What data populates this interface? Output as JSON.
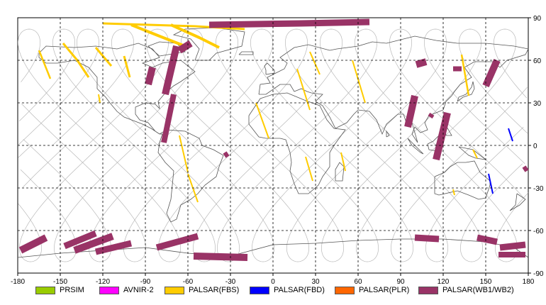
{
  "map": {
    "lon_ticks": [
      "-180",
      "-150",
      "-120",
      "-90",
      "-60",
      "-30",
      "0",
      "30",
      "60",
      "90",
      "120",
      "150",
      "180"
    ],
    "lat_ticks": [
      "90",
      "60",
      "30",
      "0",
      "-30",
      "-60",
      "-90"
    ],
    "lon_range": [
      -180,
      180
    ],
    "lat_range": [
      -90,
      90
    ],
    "grid": "dashed",
    "colors": {
      "background": "#ffffff",
      "coast": "#555555",
      "orbit": "#b8b8b8",
      "grid": "#000000"
    }
  },
  "legend": {
    "placement": "bottom",
    "items": [
      {
        "label": "PRSIM",
        "color": "#99cc00"
      },
      {
        "label": "AVNIR-2",
        "color": "#ff00ff"
      },
      {
        "label": "PALSAR(FBS)",
        "color": "#ffcc00"
      },
      {
        "label": "PALSAR(FBD)",
        "color": "#0000ff"
      },
      {
        "label": "PALSAR(PLR)",
        "color": "#ff6600"
      },
      {
        "label": "PALSAR(WB1/WB2)",
        "color": "#993366"
      }
    ]
  },
  "chart_data": {
    "type": "map",
    "swaths": [
      {
        "sensor": "PALSAR(FBS)",
        "color": "#ffcc00",
        "width": 2.5,
        "path": [
          [
            -165,
            67
          ],
          [
            -157,
            47
          ]
        ]
      },
      {
        "sensor": "PALSAR(FBS)",
        "color": "#ffcc00",
        "width": 3,
        "path": [
          [
            -148,
            72
          ],
          [
            -138,
            60
          ],
          [
            -130,
            48
          ]
        ]
      },
      {
        "sensor": "PALSAR(FBS)",
        "color": "#ffcc00",
        "width": 3,
        "path": [
          [
            -125,
            69
          ],
          [
            -114,
            56
          ]
        ]
      },
      {
        "sensor": "PALSAR(FBS)",
        "color": "#ffcc00",
        "width": 2,
        "path": [
          [
            -123,
            36
          ],
          [
            -122,
            30
          ]
        ]
      },
      {
        "sensor": "PALSAR(FBS)",
        "color": "#ffcc00",
        "width": 3,
        "path": [
          [
            -105,
            63
          ],
          [
            -101,
            48
          ]
        ]
      },
      {
        "sensor": "PALSAR(FBS)",
        "color": "#ffcc00",
        "width": 3,
        "path": [
          [
            -120,
            86
          ],
          [
            -55,
            84
          ],
          [
            -20,
            82
          ]
        ]
      },
      {
        "sensor": "PALSAR(FBS)",
        "color": "#ffcc00",
        "width": 4,
        "path": [
          [
            -100,
            85
          ],
          [
            -80,
            77
          ],
          [
            -62,
            70
          ]
        ]
      },
      {
        "sensor": "PALSAR(FBS)",
        "color": "#ffcc00",
        "width": 4,
        "path": [
          [
            -72,
            85
          ],
          [
            -52,
            76
          ],
          [
            -38,
            69
          ]
        ]
      },
      {
        "sensor": "PALSAR(FBS)",
        "color": "#ffcc00",
        "width": 2,
        "path": [
          [
            -60,
            -20
          ],
          [
            -53,
            -40
          ]
        ]
      },
      {
        "sensor": "PALSAR(FBS)",
        "color": "#ffcc00",
        "width": 2,
        "path": [
          [
            -66,
            7
          ],
          [
            -60,
            -19
          ]
        ]
      },
      {
        "sensor": "PALSAR(FBS)",
        "color": "#ffcc00",
        "width": 2,
        "path": [
          [
            -12,
            30
          ],
          [
            -3,
            5
          ]
        ]
      },
      {
        "sensor": "PALSAR(FBS)",
        "color": "#ffcc00",
        "width": 2,
        "path": [
          [
            17,
            54
          ],
          [
            26,
            25
          ]
        ]
      },
      {
        "sensor": "PALSAR(FBS)",
        "color": "#ffcc00",
        "width": 2,
        "path": [
          [
            26,
            66
          ],
          [
            33,
            50
          ]
        ]
      },
      {
        "sensor": "PALSAR(FBS)",
        "color": "#ffcc00",
        "width": 2,
        "path": [
          [
            56,
            60
          ],
          [
            65,
            30
          ]
        ]
      },
      {
        "sensor": "PALSAR(FBS)",
        "color": "#ffcc00",
        "width": 2,
        "path": [
          [
            23,
            -8
          ],
          [
            28,
            -25
          ]
        ]
      },
      {
        "sensor": "PALSAR(FBS)",
        "color": "#ffcc00",
        "width": 2,
        "path": [
          [
            48,
            -5
          ],
          [
            51,
            -18
          ]
        ]
      },
      {
        "sensor": "PALSAR(FBS)",
        "color": "#ffcc00",
        "width": 2.5,
        "path": [
          [
            133,
            64
          ],
          [
            138,
            35
          ]
        ]
      },
      {
        "sensor": "PALSAR(FBS)",
        "color": "#ffcc00",
        "width": 2,
        "path": [
          [
            141,
            -3
          ],
          [
            144,
            -9
          ]
        ]
      },
      {
        "sensor": "PALSAR(FBS)",
        "color": "#ffcc00",
        "width": 2,
        "path": [
          [
            127,
            -31
          ],
          [
            128,
            -35
          ]
        ]
      },
      {
        "sensor": "PALSAR(FBS)",
        "color": "#ffcc00",
        "width": 2,
        "path": [
          [
            119,
            14
          ],
          [
            121,
            6
          ]
        ]
      },
      {
        "sensor": "PALSAR(FBD)",
        "color": "#0000ff",
        "width": 2,
        "path": [
          [
            152,
            -20
          ],
          [
            155,
            -34
          ]
        ]
      },
      {
        "sensor": "PALSAR(FBD)",
        "color": "#0000ff",
        "width": 2,
        "path": [
          [
            166,
            12
          ],
          [
            169,
            3
          ]
        ]
      },
      {
        "sensor": "PALSAR(WB1/WB2)",
        "color": "#993366",
        "width": 10,
        "path": [
          [
            -76,
            36
          ],
          [
            -68,
            70
          ]
        ]
      },
      {
        "sensor": "PALSAR(WB1/WB2)",
        "color": "#993366",
        "width": 10,
        "path": [
          [
            -85,
            55
          ],
          [
            -88,
            43
          ]
        ]
      },
      {
        "sensor": "PALSAR(WB1/WB2)",
        "color": "#993366",
        "width": 8,
        "path": [
          [
            -77,
            2
          ],
          [
            -70,
            36
          ]
        ]
      },
      {
        "sensor": "PALSAR(WB1/WB2)",
        "color": "#993366",
        "width": 10,
        "path": [
          [
            -66,
            67
          ],
          [
            -58,
            72
          ]
        ]
      },
      {
        "sensor": "PALSAR(WB1/WB2)",
        "color": "#993366",
        "width": 9,
        "path": [
          [
            -45,
            85
          ],
          [
            20,
            86
          ],
          [
            68,
            87
          ]
        ]
      },
      {
        "sensor": "PALSAR(WB1/WB2)",
        "color": "#993366",
        "width": 6,
        "path": [
          [
            -34,
            -5
          ],
          [
            -32,
            -8
          ]
        ]
      },
      {
        "sensor": "PALSAR(WB1/WB2)",
        "color": "#993366",
        "width": 10,
        "path": [
          [
            -178,
            -74
          ],
          [
            -160,
            -65
          ]
        ]
      },
      {
        "sensor": "PALSAR(WB1/WB2)",
        "color": "#993366",
        "width": 9,
        "path": [
          [
            -147,
            -71
          ],
          [
            -125,
            -62
          ]
        ]
      },
      {
        "sensor": "PALSAR(WB1/WB2)",
        "color": "#993366",
        "width": 10,
        "path": [
          [
            -140,
            -74
          ],
          [
            -113,
            -64
          ]
        ]
      },
      {
        "sensor": "PALSAR(WB1/WB2)",
        "color": "#993366",
        "width": 9,
        "path": [
          [
            -125,
            -75
          ],
          [
            -100,
            -69
          ]
        ]
      },
      {
        "sensor": "PALSAR(WB1/WB2)",
        "color": "#993366",
        "width": 9,
        "path": [
          [
            -82,
            -72
          ],
          [
            -53,
            -64
          ]
        ]
      },
      {
        "sensor": "PALSAR(WB1/WB2)",
        "color": "#993366",
        "width": 10,
        "path": [
          [
            -56,
            -78
          ],
          [
            -18,
            -79
          ]
        ]
      },
      {
        "sensor": "PALSAR(WB1/WB2)",
        "color": "#993366",
        "width": 9,
        "path": [
          [
            100,
            -65
          ],
          [
            117,
            -66
          ]
        ]
      },
      {
        "sensor": "PALSAR(WB1/WB2)",
        "color": "#993366",
        "width": 9,
        "path": [
          [
            144,
            -65
          ],
          [
            158,
            -68
          ]
        ]
      },
      {
        "sensor": "PALSAR(WB1/WB2)",
        "color": "#993366",
        "width": 9,
        "path": [
          [
            160,
            -72
          ],
          [
            178,
            -70
          ]
        ]
      },
      {
        "sensor": "PALSAR(WB1/WB2)",
        "color": "#993366",
        "width": 8,
        "path": [
          [
            159,
            -77
          ],
          [
            178,
            -77
          ]
        ]
      },
      {
        "sensor": "PALSAR(WB1/WB2)",
        "color": "#993366",
        "width": 10,
        "path": [
          [
            101,
            57
          ],
          [
            108,
            59
          ]
        ]
      },
      {
        "sensor": "PALSAR(WB1/WB2)",
        "color": "#993366",
        "width": 10,
        "path": [
          [
            150,
            42
          ],
          [
            158,
            60
          ]
        ]
      },
      {
        "sensor": "PALSAR(WB1/WB2)",
        "color": "#993366",
        "width": 7,
        "path": [
          [
            127,
            54
          ],
          [
            133,
            54
          ]
        ]
      },
      {
        "sensor": "PALSAR(WB1/WB2)",
        "color": "#993366",
        "width": 10,
        "path": [
          [
            95,
            13
          ],
          [
            100,
            35
          ]
        ]
      },
      {
        "sensor": "PALSAR(WB1/WB2)",
        "color": "#993366",
        "width": 10,
        "path": [
          [
            115,
            -10
          ],
          [
            123,
            23
          ]
        ]
      },
      {
        "sensor": "PALSAR(WB1/WB2)",
        "color": "#993366",
        "width": 5,
        "path": [
          [
            110,
            22
          ],
          [
            113,
            20
          ]
        ]
      },
      {
        "sensor": "PALSAR(WB1/WB2)",
        "color": "#993366",
        "width": 6,
        "path": [
          [
            177,
            -15
          ],
          [
            179,
            -18
          ]
        ]
      }
    ]
  }
}
